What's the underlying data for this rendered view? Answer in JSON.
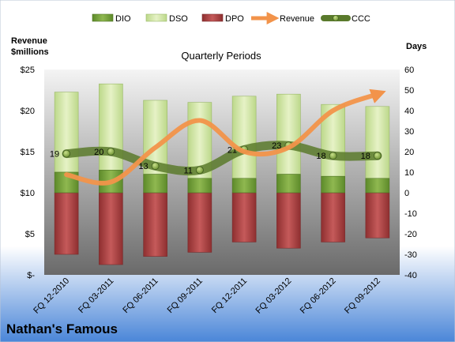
{
  "chart_data": {
    "type": "bar",
    "title": "Quarterly Periods",
    "company": "Nathan's Famous",
    "left_axis_label_line1": "Revenue",
    "left_axis_label_line2": "$millions",
    "right_axis_label": "Days",
    "left_ticks": [
      "$-",
      "$5",
      "$10",
      "$15",
      "$20",
      "$25"
    ],
    "right_ticks": [
      "-40",
      "-30",
      "-20",
      "-10",
      "0",
      "10",
      "20",
      "30",
      "40",
      "50",
      "60"
    ],
    "left_ylim": [
      0,
      25
    ],
    "right_ylim": [
      -40,
      60
    ],
    "categories": [
      "FQ 12-2010",
      "FQ 03-2011",
      "FQ 06-2011",
      "FQ 09-2011",
      "FQ 12-2011",
      "FQ 03-2012",
      "FQ 06-2012",
      "FQ 09-2012"
    ],
    "series": [
      {
        "name": "DIO",
        "axis": "right",
        "kind": "stacked-bar",
        "color": "#7ba23f",
        "values": [
          10,
          11,
          9,
          7,
          7,
          9,
          8,
          7
        ]
      },
      {
        "name": "DSO",
        "axis": "right",
        "kind": "stacked-bar",
        "color": "#d6e8a8",
        "values": [
          39,
          42,
          36,
          37,
          40,
          39,
          35,
          35
        ]
      },
      {
        "name": "DPO",
        "axis": "right",
        "kind": "stacked-bar-negative",
        "color": "#b84a4a",
        "values": [
          30,
          35,
          31,
          29,
          24,
          27,
          24,
          22
        ]
      },
      {
        "name": "Revenue",
        "axis": "left",
        "kind": "smooth-line",
        "color": "#f2934a",
        "values": [
          12.2,
          11.3,
          15.5,
          18.8,
          15.0,
          15.5,
          20.0,
          22.0
        ]
      },
      {
        "name": "CCC",
        "axis": "right",
        "kind": "smooth-line-markers",
        "color": "#6e8c3c",
        "values": [
          19,
          20,
          13,
          11,
          21,
          23,
          18,
          18
        ],
        "labels": [
          "19",
          "20",
          "13",
          "11",
          "21",
          "23",
          "18",
          "18"
        ]
      }
    ],
    "legend": [
      "DIO",
      "DSO",
      "DPO",
      "Revenue",
      "CCC"
    ],
    "legend_placement": "top",
    "grid": false
  }
}
